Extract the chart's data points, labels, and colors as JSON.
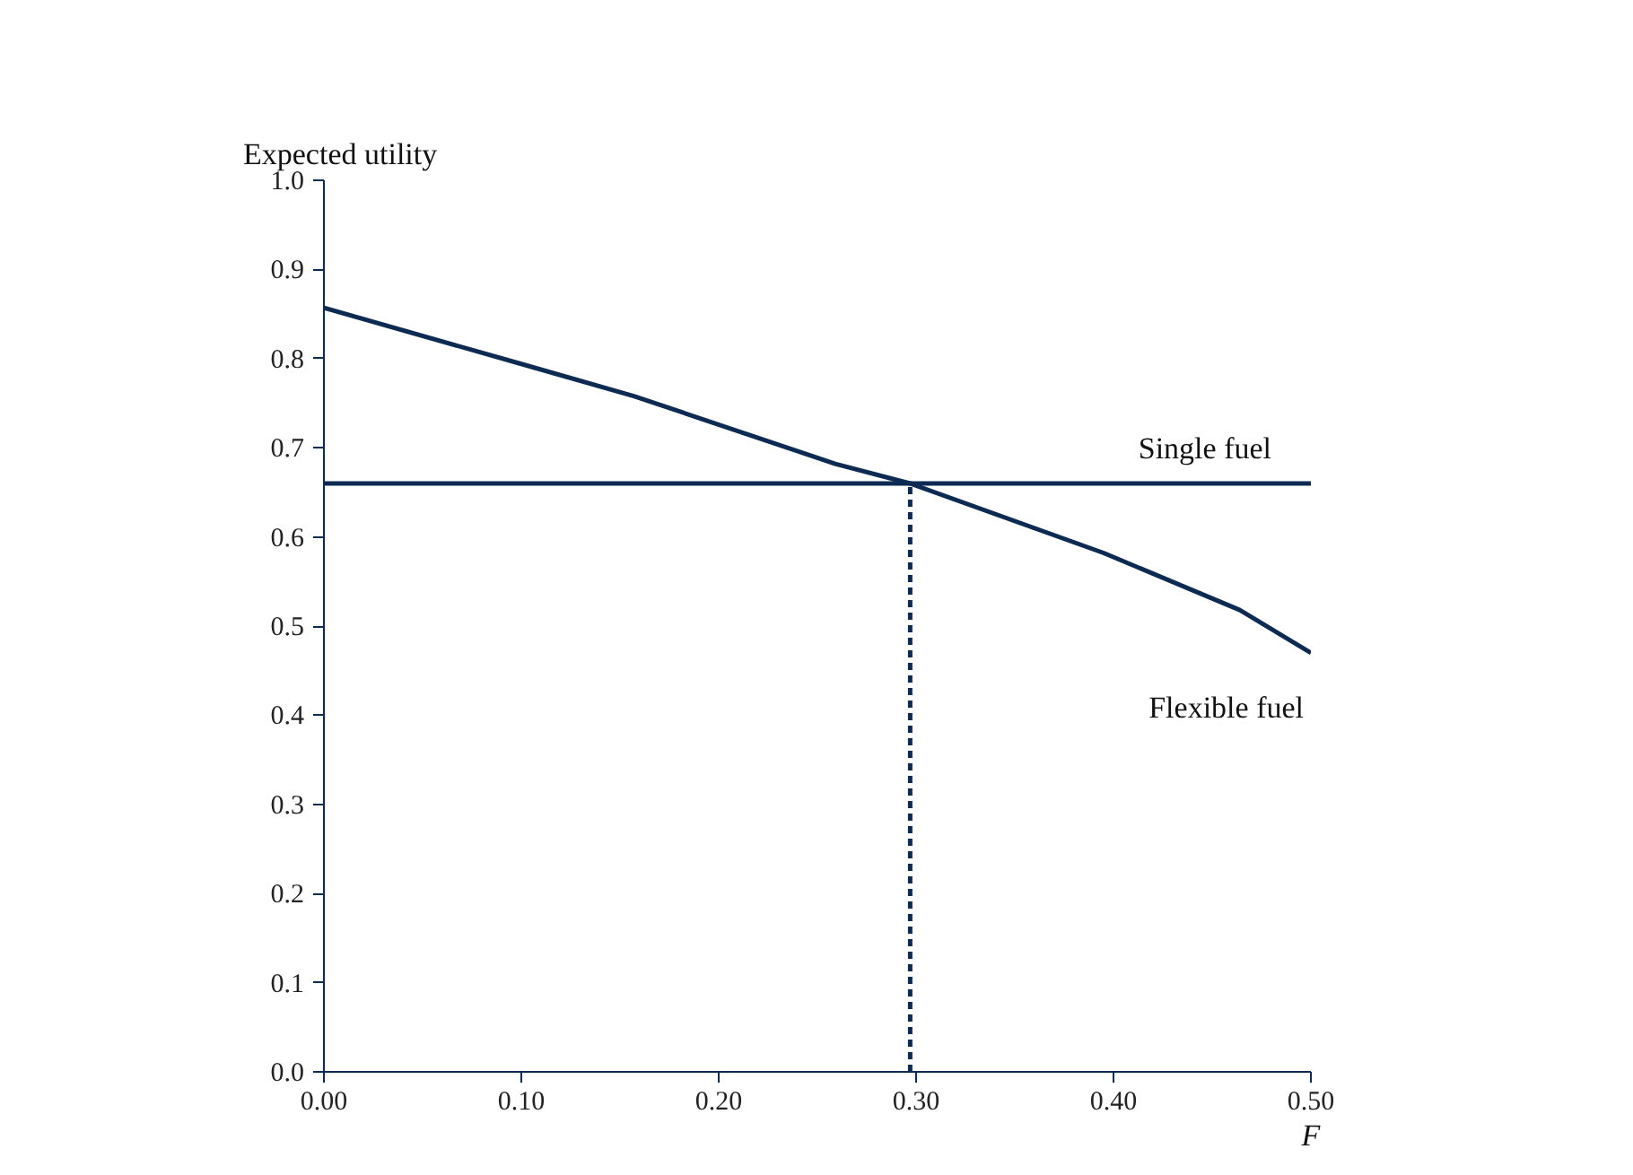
{
  "chart_data": {
    "type": "line",
    "xlabel": "F",
    "ylabel": "Expected utility",
    "series": [
      {
        "name": "Single fuel",
        "color": "#0d2b52",
        "x": [
          0,
          0.5
        ],
        "values": [
          0.66,
          0.66
        ]
      },
      {
        "name": "Flexible fuel",
        "color": "#0d2b52",
        "x": [
          0,
          0.1,
          0.157,
          0.259,
          0.297,
          0.395,
          0.464,
          0.5
        ],
        "values": [
          0.857,
          0.794,
          0.758,
          0.682,
          0.66,
          0.582,
          0.518,
          0.47
        ]
      },
      {
        "color": "#0d2b52",
        "x": [
          0.297,
          0.297
        ],
        "values": [
          0,
          0.66
        ],
        "line_style": "dashed"
      }
    ],
    "xlim": [
      0,
      0.5
    ],
    "ylim": [
      0,
      1
    ],
    "xticks": [
      {
        "value": 0,
        "label": "0.00"
      },
      {
        "value": 0.1,
        "label": "0.10"
      },
      {
        "value": 0.2,
        "label": "0.20"
      },
      {
        "value": 0.3,
        "label": "0.30"
      },
      {
        "value": 0.4,
        "label": "0.40"
      },
      {
        "value": 0.5,
        "label": "0.50"
      }
    ],
    "yticks": [
      {
        "value": 0,
        "label": "0.0"
      },
      0.1,
      0.2,
      0.3,
      0.4,
      0.5,
      0.6,
      0.7,
      0.8,
      0.9,
      {
        "value": 1,
        "label": "1.0"
      }
    ],
    "grid": false
  }
}
